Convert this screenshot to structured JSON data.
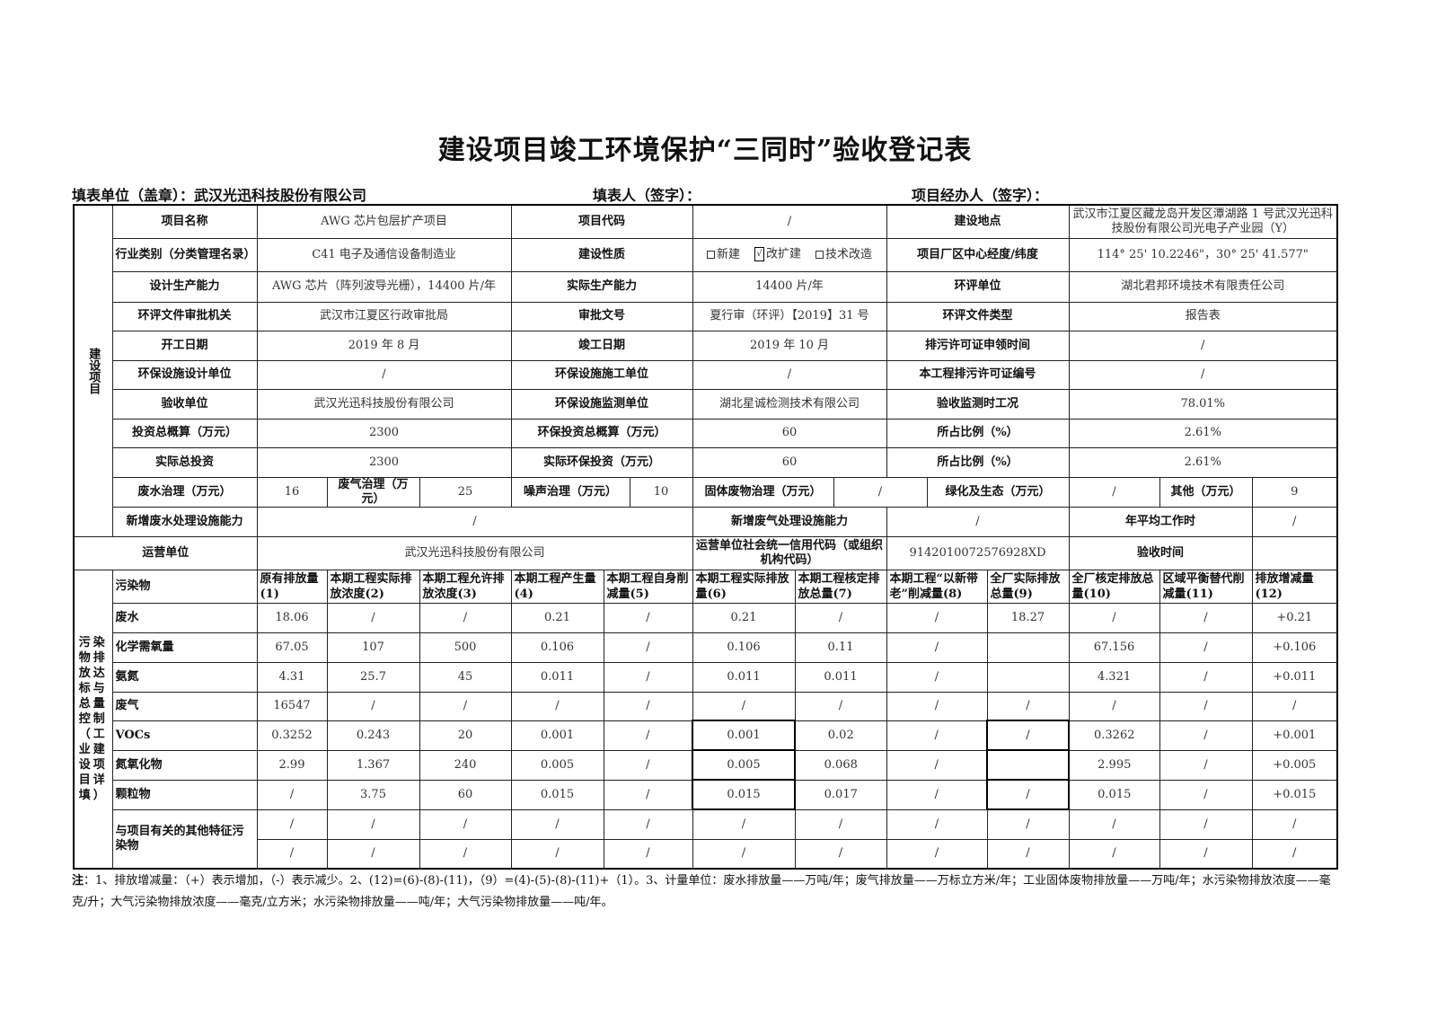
{
  "title": "建设项目竣工环境保护“三同时”验收登记表",
  "header": {
    "unit_label": "填表单位（盖章）：",
    "unit_value": "武汉光迅科技股份有限公司",
    "filler_label": "填表人（签字）：",
    "manager_label": "项目经办人（签字）："
  },
  "project": {
    "section_label": "建设项目",
    "rows": [
      [
        "项目名称",
        "AWG 芯片包层扩产项目",
        "项目代码",
        "/",
        "建设地点",
        "武汉市江夏区藏龙岛开发区潭湖路 1 号武汉光迅科技股份有限公司光电子产业园（Y）"
      ],
      [
        "行业类别（分类管理名录）",
        "C41 电子及通信设备制造业",
        "建设性质",
        "",
        "项目厂区中心经度/纬度",
        "114° 25' 10.2246\"，30° 25' 41.577\""
      ],
      [
        "设计生产能力",
        "AWG 芯片（阵列波导光栅），14400 片/年",
        "实际生产能力",
        "14400 片/年",
        "环评单位",
        "湖北君邦环境技术有限责任公司"
      ],
      [
        "环评文件审批机关",
        "武汉市江夏区行政审批局",
        "审批文号",
        "夏行审（环评）【2019】31 号",
        "环评文件类型",
        "报告表"
      ],
      [
        "开工日期",
        "2019 年 8 月",
        "竣工日期",
        "2019 年 10 月",
        "排污许可证申领时间",
        "/"
      ],
      [
        "环保设施设计单位",
        "/",
        "环保设施施工单位",
        "/",
        "本工程排污许可证编号",
        "/"
      ],
      [
        "验收单位",
        "武汉光迅科技股份有限公司",
        "环保设施监测单位",
        "湖北星诚检测技术有限公司",
        "验收监测时工况",
        "78.01%"
      ],
      [
        "投资总概算（万元）",
        "2300",
        "环保投资总概算（万元）",
        "60",
        "所占比例（%）",
        "2.61%"
      ],
      [
        "实际总投资",
        "2300",
        "实际环保投资（万元）",
        "60",
        "所占比例（%）",
        "2.61%"
      ]
    ],
    "construction_nature": [
      {
        "label": "新建",
        "checked": false
      },
      {
        "label": "改扩建",
        "checked": true
      },
      {
        "label": "技术改造",
        "checked": false
      }
    ],
    "investment_breakdown": [
      "废水治理（万元）",
      "16",
      "废气治理（万元）",
      "25",
      "噪声治理（万元）",
      "10",
      "固体废物治理（万元）",
      "/",
      "绿化及生态（万元）",
      "/",
      "其他（万元）",
      "9"
    ],
    "capacity_row": [
      "新增废水处理设施能力",
      "/",
      "新增废气处理设施能力",
      "/",
      "年平均工作时",
      "/"
    ],
    "operator_row": [
      "运营单位",
      "武汉光迅科技股份有限公司",
      "运营单位社会统一信用代码（或组织机构代码）",
      "9142010072576928XD",
      "验收时间",
      ""
    ]
  },
  "pollutants": {
    "section_label": "污染物排放达标与总量控制（工业建设项目详填）",
    "headers": [
      "污染物",
      "原有排放量(1)",
      "本期工程实际排放浓度(2)",
      "本期工程允许排放浓度(3)",
      "本期工程产生量(4)",
      "本期工程自身削减量(5)",
      "本期工程实际排放量(6)",
      "本期工程核定排放总量(7)",
      "本期工程“以新带老”削减量(8)",
      "全厂实际排放总量(9)",
      "全厂核定排放总量(10)",
      "区域平衡替代削减量(11)",
      "排放增减量(12)"
    ],
    "rows": [
      {
        "name": "废水",
        "values": [
          "18.06",
          "/",
          "/",
          "0.21",
          "/",
          "0.21",
          "/",
          "/",
          "18.27",
          "/",
          "/",
          "+0.21"
        ]
      },
      {
        "name": "化学需氧量",
        "values": [
          "67.05",
          "107",
          "500",
          "0.106",
          "/",
          "0.106",
          "0.11",
          "/",
          "",
          "67.156",
          "/",
          "+0.106"
        ]
      },
      {
        "name": "氨氮",
        "values": [
          "4.31",
          "25.7",
          "45",
          "0.011",
          "/",
          "0.011",
          "0.011",
          "/",
          "",
          "4.321",
          "/",
          "+0.011"
        ]
      },
      {
        "name": "废气",
        "values": [
          "16547",
          "/",
          "/",
          "/",
          "/",
          "/",
          "/",
          "/",
          "/",
          "/",
          "/",
          "/"
        ]
      },
      {
        "name": "VOCs",
        "values": [
          "0.3252",
          "0.243",
          "20",
          "0.001",
          "/",
          "0.001",
          "0.02",
          "/",
          "/",
          "0.3262",
          "/",
          "+0.001"
        ]
      },
      {
        "name": "氮氧化物",
        "values": [
          "2.99",
          "1.367",
          "240",
          "0.005",
          "/",
          "0.005",
          "0.068",
          "/",
          "",
          "2.995",
          "/",
          "+0.005"
        ]
      },
      {
        "name": "颗粒物",
        "values": [
          "/",
          "3.75",
          "60",
          "0.015",
          "/",
          "0.015",
          "0.017",
          "/",
          "/",
          "0.015",
          "/",
          "+0.015"
        ]
      }
    ],
    "other_label": "与项目有关的其他特征污染物",
    "other_rows": [
      [
        "/",
        "/",
        "/",
        "/",
        "/",
        "/",
        "/",
        "/",
        "/",
        "/",
        "/",
        "/"
      ],
      [
        "/",
        "/",
        "/",
        "/",
        "/",
        "/",
        "/",
        "/",
        "/",
        "/",
        "/",
        "/"
      ]
    ]
  },
  "note": {
    "prefix": "注",
    "text": "：1、排放增减量：（+）表示增加，（-）表示减少。2、(12)=(6)-(8)-(11)，（9）=(4)-(5)-(8)-(11)+（1）。3、计量单位：废水排放量——万吨/年；废气排放量——万标立方米/年；工业固体废物排放量——万吨/年；水污染物排放浓度——毫克/升；大气污染物排放浓度——毫克/立方米；水污染物排放量——吨/年；大气污染物排放量——吨/年。"
  }
}
